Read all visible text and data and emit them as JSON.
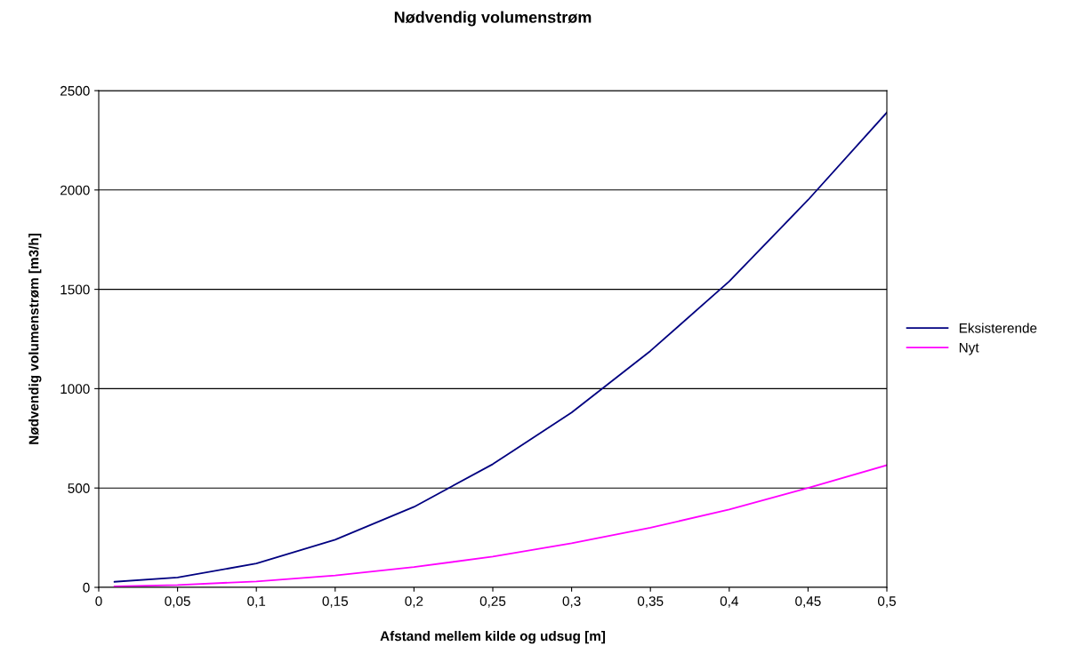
{
  "chart_data": {
    "type": "line",
    "title": "Nødvendig volumenstrøm",
    "xlabel": "Afstand mellem kilde og udsug [m]",
    "ylabel": "Nødvendig volumenstrøm [m3/h]",
    "x": [
      0.01,
      0.05,
      0.1,
      0.15,
      0.2,
      0.25,
      0.3,
      0.35,
      0.4,
      0.45,
      0.5
    ],
    "series": [
      {
        "name": "Eksisterende",
        "color": "#000080",
        "values": [
          28,
          50,
          120,
          240,
          405,
          620,
          880,
          1190,
          1540,
          1950,
          2390
        ]
      },
      {
        "name": "Nyt",
        "color": "#ff00ff",
        "values": [
          5,
          12,
          30,
          60,
          102,
          155,
          222,
          300,
          392,
          500,
          615
        ]
      }
    ],
    "xlim": [
      0,
      0.5
    ],
    "xticks": [
      0,
      {
        "value": 0.05,
        "label": "0,05"
      },
      {
        "value": 0.1,
        "label": "0,1"
      },
      {
        "value": 0.15,
        "label": "0,15"
      },
      {
        "value": 0.2,
        "label": "0,2"
      },
      {
        "value": 0.25,
        "label": "0,25"
      },
      {
        "value": 0.3,
        "label": "0,3"
      },
      {
        "value": 0.35,
        "label": "0,35"
      },
      {
        "value": 0.4,
        "label": "0,4"
      },
      {
        "value": 0.45,
        "label": "0,45"
      },
      {
        "value": 0.5,
        "label": "0,5"
      }
    ],
    "ylim": [
      0,
      2500
    ],
    "yticks": [
      0,
      500,
      1000,
      1500,
      2000,
      2500
    ],
    "grid": "y",
    "legend": "right",
    "marker": "none",
    "line_style": "solid"
  }
}
